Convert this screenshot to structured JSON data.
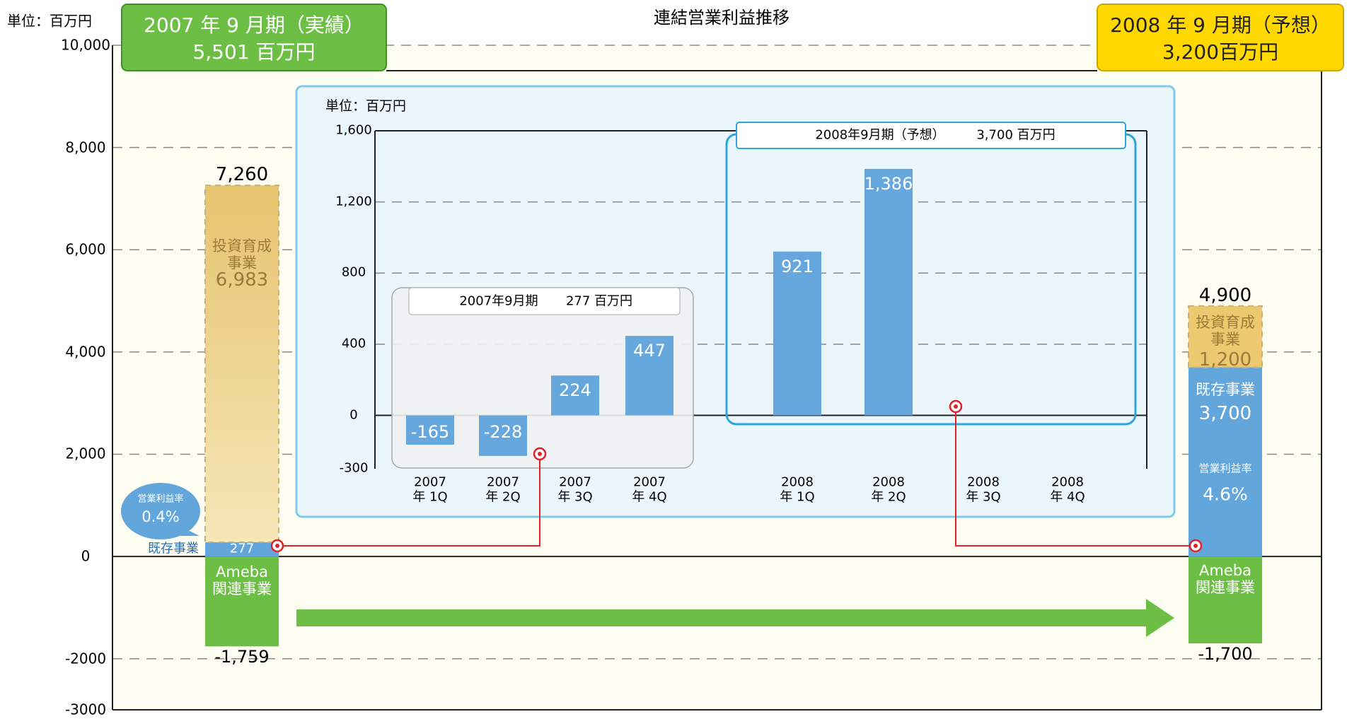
{
  "chart_data": [
    {
      "type": "bar",
      "stacked": true,
      "title": "連結営業利益推移",
      "unit_label": "単位：百万円",
      "categories": [
        "2007 年 9 月期（実績）",
        "2008 年 9 月期（予想）"
      ],
      "headline_labels": [
        "5,501 百万円",
        "3,200百万円"
      ],
      "series": [
        {
          "name": "Ameba 関連事業",
          "color": "#6dbe45",
          "values": [
            -1759,
            -1700
          ],
          "value_labels": [
            "-1,759",
            "-1,700"
          ]
        },
        {
          "name": "既存事業",
          "color": "#62a6dc",
          "values": [
            277,
            3700
          ],
          "value_labels": [
            "277",
            "3,700"
          ]
        },
        {
          "name": "投資育成事業",
          "color": "#e6c46e",
          "values": [
            6983,
            1200
          ],
          "value_labels": [
            "6,983",
            "1,200"
          ]
        }
      ],
      "top_values": [
        7260,
        4900
      ],
      "top_labels": [
        "7,260",
        "4,900"
      ],
      "margin_label": "営業利益率",
      "margin_labels": [
        "0.4%",
        "4.6%"
      ],
      "ylim": [
        -3000,
        10000
      ],
      "yticks": [
        -3000,
        -2000,
        0,
        {
          "value": 2000,
          "label": "2,000"
        },
        {
          "value": 4000,
          "label": "4,000"
        },
        {
          "value": 6000,
          "label": "6,000"
        },
        {
          "value": 8000,
          "label": "8,000"
        },
        {
          "value": 10000,
          "label": "10,000"
        }
      ],
      "grid": true
    },
    {
      "type": "bar",
      "unit_label": "単位：百万円",
      "categories": [
        "2007年 1Q",
        "2007年 2Q",
        "2007年 3Q",
        "2007年 4Q",
        "2008年 1Q",
        "2008年 2Q",
        "2008年 3Q",
        "2008年 4Q"
      ],
      "values": [
        -165,
        -228,
        224,
        447,
        921,
        1386,
        null,
        null
      ],
      "value_labels": [
        "-165",
        "-228",
        "224",
        "447",
        "921",
        "1,386",
        null,
        null
      ],
      "color": "#66a8dd",
      "groups": [
        {
          "label": "2007年9月期",
          "total_label": "277 百万円"
        },
        {
          "label": "2008年9月期（予想）",
          "total_label": "3,700 百万円"
        }
      ],
      "ylim": [
        -300,
        1600
      ],
      "yticks": [
        -300,
        0,
        400,
        800,
        {
          "value": 1200,
          "label": "1,200"
        },
        {
          "value": 1600,
          "label": "1,600"
        }
      ],
      "grid": true
    }
  ]
}
